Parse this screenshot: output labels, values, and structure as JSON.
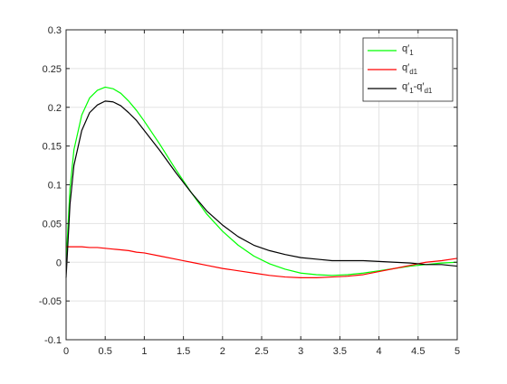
{
  "chart_data": {
    "type": "line",
    "title": "",
    "xlabel": "",
    "ylabel": "",
    "xlim": [
      0,
      5
    ],
    "ylim": [
      -0.1,
      0.3
    ],
    "grid": true,
    "legend_position": "top-right",
    "x_ticks": [
      "0",
      "0.5",
      "1",
      "1.5",
      "2",
      "2.5",
      "3",
      "3.5",
      "4",
      "4.5",
      "5"
    ],
    "y_ticks": [
      "-0.1",
      "-0.05",
      "0",
      "0.05",
      "0.1",
      "0.15",
      "0.2",
      "0.25",
      "0.3"
    ],
    "x": [
      0,
      0.05,
      0.1,
      0.2,
      0.3,
      0.4,
      0.5,
      0.6,
      0.7,
      0.8,
      0.9,
      1.0,
      1.2,
      1.4,
      1.5,
      1.6,
      1.8,
      2.0,
      2.2,
      2.4,
      2.6,
      2.8,
      3.0,
      3.2,
      3.4,
      3.6,
      3.8,
      4.0,
      4.2,
      4.4,
      4.6,
      4.8,
      5.0
    ],
    "series": [
      {
        "name": "q'1",
        "legend_main": "q′",
        "legend_sub": "1",
        "color": "#00ff00",
        "values": [
          0.0,
          0.095,
          0.145,
          0.19,
          0.212,
          0.222,
          0.226,
          0.224,
          0.218,
          0.208,
          0.196,
          0.182,
          0.152,
          0.12,
          0.105,
          0.09,
          0.062,
          0.04,
          0.022,
          0.008,
          -0.002,
          -0.009,
          -0.014,
          -0.016,
          -0.017,
          -0.016,
          -0.014,
          -0.011,
          -0.008,
          -0.005,
          -0.003,
          -0.001,
          0.0
        ]
      },
      {
        "name": "q'd1",
        "legend_main": "q′",
        "legend_sub": "d1",
        "color": "#ff0000",
        "values": [
          0.02,
          0.02,
          0.02,
          0.02,
          0.019,
          0.019,
          0.018,
          0.017,
          0.016,
          0.015,
          0.013,
          0.012,
          0.008,
          0.004,
          0.002,
          0.0,
          -0.004,
          -0.008,
          -0.011,
          -0.014,
          -0.017,
          -0.019,
          -0.02,
          -0.02,
          -0.019,
          -0.018,
          -0.016,
          -0.012,
          -0.008,
          -0.004,
          0.0,
          0.002,
          0.005
        ]
      },
      {
        "name": "q'1-q'd1",
        "legend_main": "q′",
        "legend_sub": "1",
        "legend_mid": "-q′",
        "legend_sub2": "d1",
        "color": "#000000",
        "values": [
          -0.02,
          0.075,
          0.125,
          0.17,
          0.193,
          0.203,
          0.208,
          0.207,
          0.202,
          0.193,
          0.183,
          0.17,
          0.144,
          0.116,
          0.103,
          0.09,
          0.066,
          0.048,
          0.033,
          0.022,
          0.015,
          0.01,
          0.006,
          0.004,
          0.002,
          0.002,
          0.002,
          0.001,
          0.0,
          -0.001,
          -0.003,
          -0.003,
          -0.005
        ]
      }
    ]
  }
}
